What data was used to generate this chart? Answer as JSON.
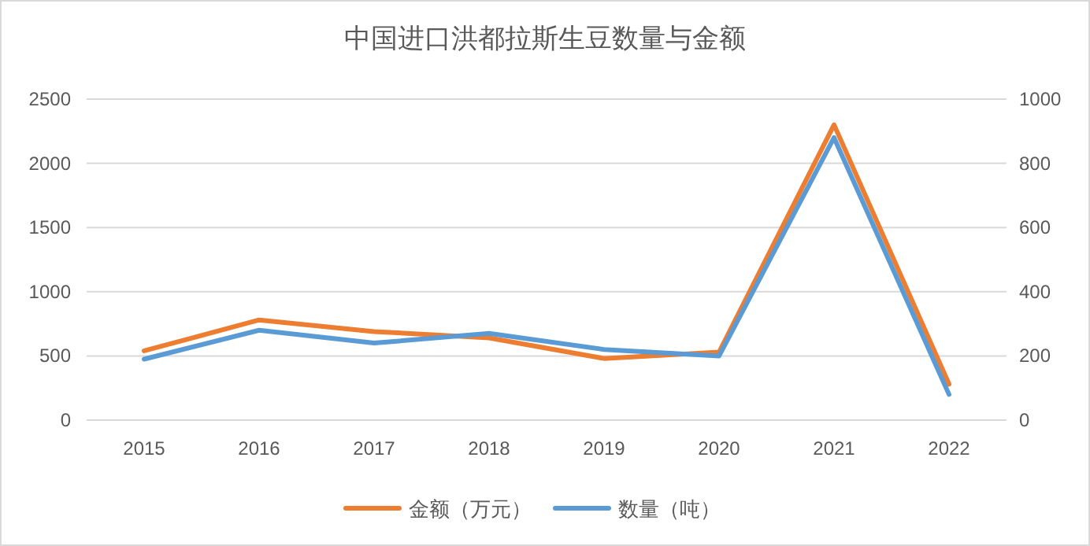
{
  "chart_data": {
    "type": "line",
    "title": "中国进口洪都拉斯生豆数量与金额",
    "categories": [
      "2015",
      "2016",
      "2017",
      "2018",
      "2019",
      "2020",
      "2021",
      "2022"
    ],
    "series": [
      {
        "name": "金额（万元）",
        "color": "#ed7d31",
        "values": [
          540,
          780,
          690,
          640,
          480,
          530,
          2300,
          280
        ]
      },
      {
        "name": "数量（吨）",
        "color": "#5b9bd5",
        "axis": "y2",
        "values": [
          190,
          280,
          240,
          270,
          220,
          200,
          880,
          80
        ]
      }
    ],
    "ylim": [
      0,
      2500
    ],
    "yticks": [
      0,
      500,
      1000,
      1500,
      2000,
      2500
    ],
    "y2lim": [
      0,
      1000
    ],
    "y2ticks": [
      0,
      200,
      400,
      600,
      800,
      1000
    ],
    "grid": "y",
    "legend": "bottom",
    "line_style": "solid"
  }
}
